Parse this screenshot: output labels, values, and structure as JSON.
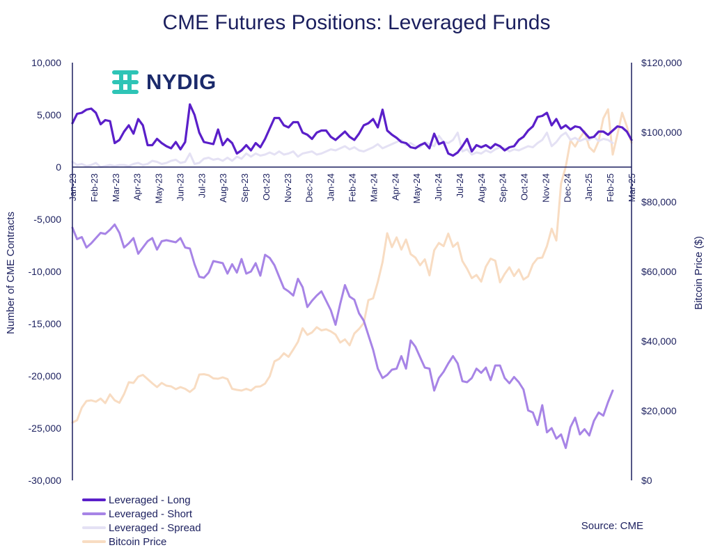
{
  "colors": {
    "long": "#5a1fc9",
    "short": "#a784e6",
    "spread": "#e4e1f4",
    "btc": "#f8dcc2",
    "axis": "#1b1f5e"
  },
  "logo": {
    "text": "NYDIG",
    "icon": "nydig-logo-icon",
    "color": "#2ec4b6"
  },
  "source": "Source: CME",
  "chart_data": {
    "type": "line",
    "title": "CME Futures Positions: Leveraged Funds",
    "ylabel": "Number of CME Contracts",
    "y2label": "Bitcoin Price ($)",
    "ylim": [
      -30000,
      10000
    ],
    "y2lim": [
      0,
      120000
    ],
    "yticks": [
      "10,000",
      "5,000",
      "0",
      "-5,000",
      "-10,000",
      "-15,000",
      "-20,000",
      "-25,000",
      "-30,000"
    ],
    "y2ticks": [
      "$120,000",
      "$100,000",
      "$80,000",
      "$60,000",
      "$40,000",
      "$20,000",
      "$0"
    ],
    "xticks": [
      "Jan-23",
      "Feb-23",
      "Mar-23",
      "Apr-23",
      "May-23",
      "Jun-23",
      "Jul-23",
      "Aug-23",
      "Sep-23",
      "Oct-23",
      "Nov-23",
      "Dec-23",
      "Jan-24",
      "Feb-24",
      "Mar-24",
      "Apr-24",
      "May-24",
      "Jun-24",
      "Jul-24",
      "Aug-24",
      "Sep-24",
      "Oct-24",
      "Nov-24",
      "Dec-24",
      "Jan-25",
      "Feb-25",
      "Mar-25"
    ],
    "x_start": "Jan-23",
    "x_step": "weekly",
    "legend": [
      "Leveraged - Long",
      "Leveraged - Short",
      "Leveraged - Spread",
      "Bitcoin Price"
    ],
    "series": [
      {
        "name": "Leveraged - Long",
        "axis": "left",
        "values": [
          4200,
          5100,
          5200,
          5500,
          5600,
          5200,
          4100,
          4500,
          4400,
          2300,
          2600,
          3400,
          4000,
          3200,
          4600,
          4000,
          2100,
          2100,
          2700,
          2300,
          2000,
          1800,
          2400,
          1700,
          2400,
          6000,
          5000,
          3300,
          2400,
          2300,
          2200,
          3600,
          2100,
          2700,
          2300,
          1300,
          1600,
          2100,
          1600,
          2300,
          1900,
          2700,
          3700,
          4700,
          4700,
          4000,
          3800,
          4300,
          4300,
          3300,
          3100,
          2700,
          3300,
          3500,
          3500,
          2900,
          2600,
          3000,
          3400,
          2900,
          2600,
          3200,
          4000,
          4200,
          4600,
          3800,
          5500,
          3500,
          3100,
          2800,
          2400,
          2300,
          1900,
          1800,
          2100,
          2300,
          1800,
          3200,
          2200,
          2400,
          1300,
          1100,
          1400,
          2000,
          2700,
          1500,
          2100,
          1900,
          2100,
          1800,
          2200,
          2000,
          1600,
          1900,
          2000,
          2600,
          2900,
          3500,
          3900,
          4800,
          4900,
          5200,
          4000,
          4600,
          3700,
          4000,
          3600,
          3900,
          3800,
          3300,
          2800,
          2900,
          3400,
          3400,
          3100,
          3500,
          3900,
          3800,
          3400,
          2600
        ]
      },
      {
        "name": "Leveraged - Short",
        "axis": "left",
        "values": [
          -5800,
          -6900,
          -6700,
          -7700,
          -7300,
          -6800,
          -6300,
          -6400,
          -6000,
          -5500,
          -6300,
          -7700,
          -7300,
          -6800,
          -8300,
          -7700,
          -7100,
          -6800,
          -7900,
          -7100,
          -7000,
          -7100,
          -7200,
          -6800,
          -7700,
          -7800,
          -9300,
          -10500,
          -10600,
          -10100,
          -9000,
          -9100,
          -9200,
          -10200,
          -9300,
          -10100,
          -8800,
          -10200,
          -10000,
          -9200,
          -10400,
          -8400,
          -8700,
          -9400,
          -10500,
          -11600,
          -11900,
          -12300,
          -10700,
          -11500,
          -13400,
          -12800,
          -12300,
          -11900,
          -12800,
          -13700,
          -15100,
          -13100,
          -11300,
          -12400,
          -12700,
          -14000,
          -14700,
          -16100,
          -17500,
          -19300,
          -20200,
          -19900,
          -19400,
          -19300,
          -18100,
          -19300,
          -16600,
          -17200,
          -18200,
          -19200,
          -19300,
          -21400,
          -20200,
          -19600,
          -18800,
          -18100,
          -18800,
          -20500,
          -20600,
          -20200,
          -19300,
          -19700,
          -19200,
          -20400,
          -19000,
          -19000,
          -20200,
          -20700,
          -20100,
          -20600,
          -21300,
          -23300,
          -23500,
          -24700,
          -22800,
          -25400,
          -25000,
          -26000,
          -25600,
          -26900,
          -24900,
          -24000,
          -25600,
          -25100,
          -25700,
          -24300,
          -23500,
          -23800,
          -22500,
          -21400
        ]
      },
      {
        "name": "Leveraged - Spread",
        "axis": "left",
        "values": [
          500,
          200,
          300,
          100,
          200,
          400,
          0,
          100,
          200,
          100,
          200,
          200,
          100,
          300,
          400,
          200,
          300,
          600,
          500,
          300,
          400,
          600,
          700,
          400,
          500,
          1300,
          300,
          400,
          800,
          900,
          700,
          800,
          600,
          900,
          600,
          1000,
          800,
          1300,
          1000,
          1300,
          1100,
          1200,
          1400,
          1200,
          1500,
          1200,
          1300,
          1500,
          1000,
          1300,
          1400,
          1500,
          1200,
          1300,
          1500,
          1700,
          1600,
          1800,
          2000,
          1700,
          1900,
          1600,
          1500,
          1700,
          1900,
          2200,
          1800,
          2000,
          2200,
          2400,
          2600,
          2100,
          2300,
          2000,
          1900,
          2400,
          2200,
          2000,
          3000,
          2400,
          2300,
          2600,
          3300,
          1500,
          1700,
          1200,
          1400,
          1300,
          1600,
          1400,
          1700,
          1900,
          1800,
          1500,
          1700,
          1600,
          1800,
          2000,
          1900,
          2300,
          2600,
          3300,
          2000,
          2400,
          3000,
          3300,
          2600,
          2800,
          2500,
          2700,
          2600,
          2900,
          2500,
          2700,
          2600,
          2300
        ]
      },
      {
        "name": "Bitcoin Price",
        "axis": "right",
        "values": [
          16600,
          17300,
          20900,
          22800,
          23000,
          22600,
          23500,
          22200,
          24700,
          23000,
          22300,
          24800,
          28200,
          28000,
          29800,
          30300,
          29100,
          27900,
          26800,
          28000,
          27200,
          27000,
          26200,
          26800,
          26300,
          25400,
          26500,
          30400,
          30500,
          30200,
          29300,
          29200,
          29600,
          29100,
          26300,
          26000,
          25800,
          26300,
          25800,
          26900,
          27000,
          27800,
          29900,
          34200,
          34900,
          36500,
          35500,
          37600,
          39800,
          43700,
          41800,
          42500,
          44000,
          43100,
          43400,
          42800,
          41900,
          39600,
          40500,
          38800,
          42200,
          43500,
          45200,
          51800,
          52300,
          57000,
          62700,
          71000,
          67000,
          69800,
          66300,
          69200,
          65000,
          64000,
          61800,
          63500,
          58900,
          66100,
          68200,
          67300,
          70900,
          67100,
          68300,
          63000,
          60800,
          58100,
          59000,
          57100,
          61400,
          63700,
          63100,
          56900,
          59300,
          61200,
          58700,
          60600,
          57700,
          58600,
          62100,
          63800,
          64000,
          67300,
          72300,
          68900,
          85300,
          90100,
          97600,
          95900,
          98400,
          100300,
          95700,
          94400,
          97500,
          104000,
          106600,
          93600,
          99400,
          105600,
          101700,
          97000
        ]
      }
    ]
  }
}
